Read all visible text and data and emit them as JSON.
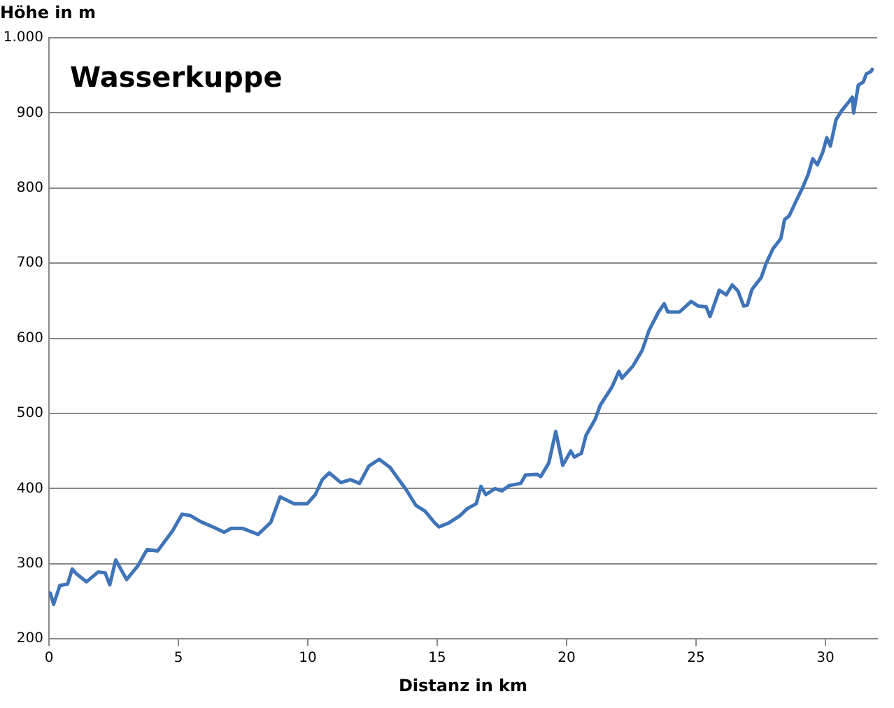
{
  "chart_data": {
    "type": "line",
    "title": "Wasserkuppe",
    "xlabel": "Distanz in km",
    "ylabel": "Höhe in m",
    "grid": "y",
    "legend": false,
    "marker": "none",
    "line_style": "solid",
    "xlim": [
      0,
      32
    ],
    "xticks": [
      0,
      5,
      10,
      15,
      20,
      25,
      30
    ],
    "ylim": [
      200,
      1000
    ],
    "yticks": [
      200,
      300,
      400,
      500,
      600,
      700,
      800,
      900,
      {
        "value": 1000,
        "label": "1.000"
      }
    ],
    "x": [
      0.05,
      0.18,
      0.42,
      0.72,
      0.9,
      1.08,
      1.45,
      1.9,
      2.17,
      2.35,
      2.58,
      3.0,
      3.43,
      3.79,
      4.2,
      4.78,
      5.14,
      5.47,
      5.86,
      6.4,
      6.77,
      7.04,
      7.49,
      8.08,
      8.57,
      8.93,
      9.47,
      9.98,
      10.29,
      10.56,
      10.83,
      11.28,
      11.64,
      12.0,
      12.36,
      12.76,
      13.18,
      13.81,
      14.17,
      14.53,
      14.89,
      15.07,
      15.43,
      15.88,
      16.15,
      16.51,
      16.69,
      16.88,
      17.23,
      17.5,
      17.78,
      18.23,
      18.41,
      18.86,
      19.0,
      19.31,
      19.58,
      19.85,
      20.16,
      20.3,
      20.57,
      20.75,
      21.1,
      21.3,
      21.75,
      22.02,
      22.14,
      22.56,
      22.92,
      23.19,
      23.55,
      23.77,
      23.91,
      24.36,
      24.81,
      25.08,
      25.39,
      25.54,
      25.9,
      26.17,
      26.4,
      26.62,
      26.84,
      26.98,
      27.16,
      27.52,
      27.7,
      27.97,
      28.28,
      28.42,
      28.6,
      28.87,
      29.11,
      29.33,
      29.51,
      29.69,
      29.9,
      30.05,
      30.19,
      30.41,
      30.63,
      30.91,
      31.04,
      31.09,
      31.27,
      31.46,
      31.58,
      31.76,
      31.81
    ],
    "series": [
      {
        "color": "#3f74b8",
        "values": [
          261,
          246,
          271,
          273,
          293,
          286,
          276,
          289,
          288,
          272,
          305,
          279,
          297,
          319,
          317,
          344,
          366,
          364,
          356,
          348,
          342,
          347,
          347,
          339,
          355,
          389,
          380,
          380,
          392,
          412,
          421,
          408,
          412,
          407,
          430,
          439,
          428,
          398,
          378,
          370,
          355,
          349,
          354,
          364,
          373,
          380,
          403,
          392,
          400,
          397,
          404,
          407,
          418,
          419,
          416,
          434,
          476,
          431,
          450,
          442,
          447,
          471,
          492,
          511,
          535,
          556,
          547,
          563,
          584,
          611,
          635,
          646,
          635,
          635,
          649,
          643,
          642,
          629,
          664,
          658,
          671,
          663,
          643,
          644,
          665,
          681,
          699,
          719,
          733,
          758,
          763,
          783,
          800,
          818,
          839,
          831,
          848,
          867,
          856,
          891,
          903,
          915,
          921,
          900,
          937,
          941,
          952,
          955,
          958
        ]
      }
    ]
  }
}
